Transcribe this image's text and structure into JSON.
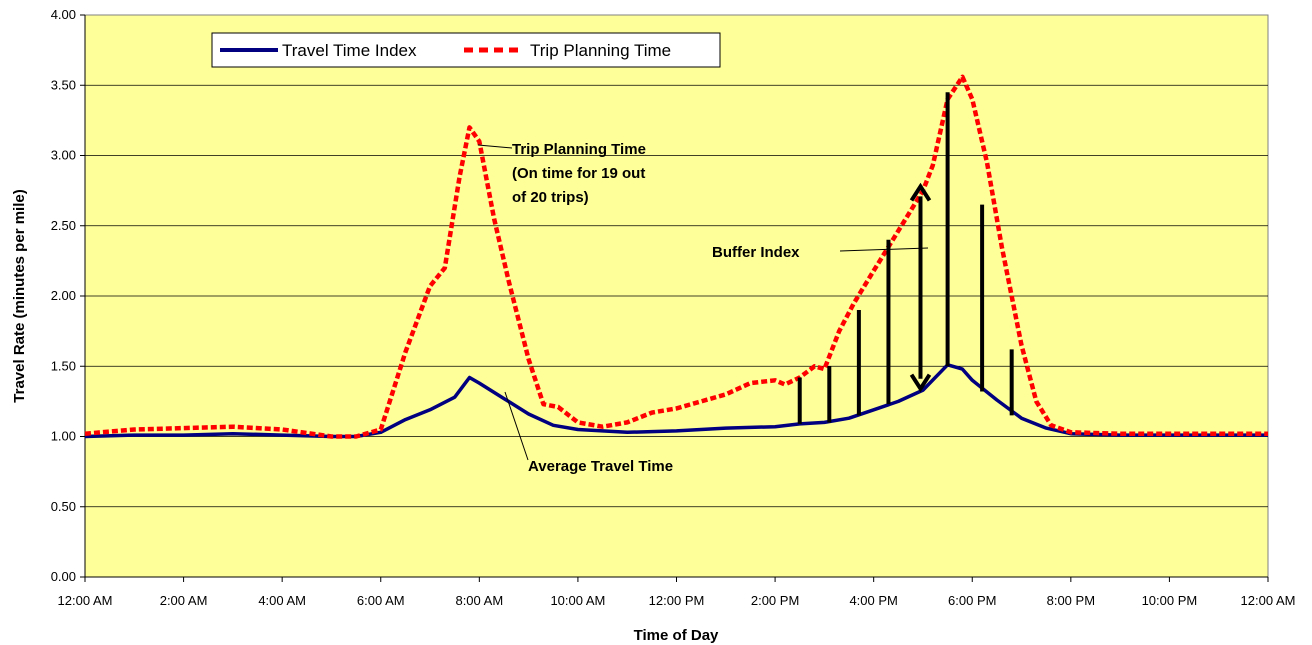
{
  "chart_data": {
    "type": "line",
    "xlabel": "Time of Day",
    "ylabel": "Travel Rate (minutes per mile)",
    "ylim": [
      0,
      4
    ],
    "xlim": [
      0,
      24
    ],
    "x_ticks": [
      "12:00 AM",
      "2:00 AM",
      "4:00 AM",
      "6:00 AM",
      "8:00 AM",
      "10:00 AM",
      "12:00 PM",
      "2:00 PM",
      "4:00 PM",
      "6:00 PM",
      "8:00 PM",
      "10:00 PM",
      "12:00 AM"
    ],
    "y_ticks": [
      "0.00",
      "0.50",
      "1.00",
      "1.50",
      "2.00",
      "2.50",
      "3.00",
      "3.50",
      "4.00"
    ],
    "grid": "horizontal",
    "legend_position": "top-left",
    "colors": {
      "plot_bg": "#ffff99",
      "travel_time_index": "#000080",
      "trip_planning_time": "#ff0000"
    },
    "series": [
      {
        "name": "Travel Time Index",
        "style": "solid",
        "x": [
          0,
          1,
          2,
          3,
          4,
          5,
          5.5,
          6,
          6.5,
          7,
          7.5,
          7.8,
          8,
          8.5,
          9,
          9.5,
          10,
          11,
          12,
          13,
          14,
          14.5,
          15,
          15.5,
          16,
          16.5,
          17,
          17.5,
          17.8,
          18,
          18.5,
          19,
          19.5,
          20,
          21,
          22,
          23,
          24
        ],
        "y": [
          1.0,
          1.01,
          1.01,
          1.02,
          1.01,
          1.0,
          1.0,
          1.03,
          1.12,
          1.19,
          1.28,
          1.42,
          1.38,
          1.27,
          1.16,
          1.08,
          1.05,
          1.03,
          1.04,
          1.06,
          1.07,
          1.09,
          1.1,
          1.13,
          1.19,
          1.25,
          1.33,
          1.51,
          1.48,
          1.4,
          1.26,
          1.13,
          1.06,
          1.02,
          1.01,
          1.01,
          1.01,
          1.01
        ]
      },
      {
        "name": "Trip Planning Time",
        "style": "dashed",
        "x": [
          0,
          1,
          2,
          3,
          4,
          5,
          5.5,
          6,
          6.5,
          7,
          7.3,
          7.6,
          7.8,
          8,
          8.3,
          8.6,
          9,
          9.3,
          9.6,
          10,
          10.5,
          11,
          11.5,
          12,
          12.5,
          13,
          13.5,
          14,
          14.2,
          14.5,
          14.8,
          15,
          15.3,
          15.6,
          16,
          16.3,
          16.6,
          17,
          17.2,
          17.5,
          17.8,
          18,
          18.3,
          18.6,
          19,
          19.3,
          19.6,
          20,
          21,
          22,
          23,
          24
        ],
        "y": [
          1.02,
          1.05,
          1.06,
          1.07,
          1.05,
          1.0,
          1.0,
          1.05,
          1.6,
          2.07,
          2.2,
          2.85,
          3.2,
          3.1,
          2.55,
          2.1,
          1.55,
          1.23,
          1.21,
          1.1,
          1.07,
          1.1,
          1.17,
          1.2,
          1.25,
          1.3,
          1.38,
          1.4,
          1.37,
          1.42,
          1.5,
          1.48,
          1.75,
          1.95,
          2.18,
          2.35,
          2.52,
          2.75,
          2.93,
          3.4,
          3.56,
          3.4,
          2.95,
          2.35,
          1.65,
          1.25,
          1.08,
          1.03,
          1.02,
          1.02,
          1.02,
          1.02
        ]
      }
    ],
    "buffer_bars": [
      {
        "x": 14.5,
        "low": 1.09,
        "high": 1.42
      },
      {
        "x": 15.1,
        "low": 1.1,
        "high": 1.5
      },
      {
        "x": 15.7,
        "low": 1.15,
        "high": 1.9
      },
      {
        "x": 16.3,
        "low": 1.23,
        "high": 2.4
      },
      {
        "x": 17.5,
        "low": 1.5,
        "high": 3.45
      },
      {
        "x": 18.2,
        "low": 1.32,
        "high": 2.65
      },
      {
        "x": 18.8,
        "low": 1.15,
        "high": 1.62
      }
    ],
    "annotations": {
      "trip_planning": [
        "Trip Planning Time",
        "(On time for 19 out",
        "of 20 trips)"
      ],
      "buffer_index": "Buffer Index",
      "average_travel": "Average Travel Time"
    }
  }
}
